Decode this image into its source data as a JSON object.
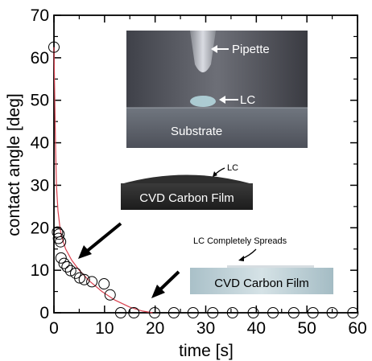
{
  "chart_data": {
    "type": "scatter",
    "xlabel": "time [s]",
    "ylabel": "contact angle [deg]",
    "xlim": [
      0,
      60
    ],
    "ylim": [
      0,
      70
    ],
    "xticks": [
      0,
      10,
      20,
      30,
      40,
      50,
      60
    ],
    "yticks": [
      0,
      10,
      20,
      30,
      40,
      50,
      60,
      70
    ],
    "marker": "open-circle",
    "marker_color": "#000000",
    "curve_color": "#d9414f",
    "points": [
      {
        "x": 0,
        "y": 62.5
      },
      {
        "x": 0.7,
        "y": 19
      },
      {
        "x": 0.9,
        "y": 17.5
      },
      {
        "x": 1.0,
        "y": 18.5
      },
      {
        "x": 1.3,
        "y": 16.7
      },
      {
        "x": 1.4,
        "y": 12.9
      },
      {
        "x": 2.0,
        "y": 11.6
      },
      {
        "x": 2.6,
        "y": 10.8
      },
      {
        "x": 3.3,
        "y": 9.9
      },
      {
        "x": 4.3,
        "y": 9.3
      },
      {
        "x": 5.1,
        "y": 8.2
      },
      {
        "x": 6.0,
        "y": 7.8
      },
      {
        "x": 7.5,
        "y": 7.3
      },
      {
        "x": 9.9,
        "y": 6.8
      },
      {
        "x": 11.1,
        "y": 4.2
      },
      {
        "x": 13.2,
        "y": 0
      },
      {
        "x": 15.8,
        "y": 0
      },
      {
        "x": 19.9,
        "y": 0
      },
      {
        "x": 23.7,
        "y": 0
      },
      {
        "x": 27.5,
        "y": 0
      },
      {
        "x": 31.4,
        "y": 0
      },
      {
        "x": 35.3,
        "y": 0
      },
      {
        "x": 39.4,
        "y": 0
      },
      {
        "x": 43.3,
        "y": 0
      },
      {
        "x": 47.4,
        "y": 0
      },
      {
        "x": 51.2,
        "y": 0
      },
      {
        "x": 55.0,
        "y": 0
      },
      {
        "x": 59.1,
        "y": 0
      }
    ],
    "fit_curve": [
      {
        "x": 0,
        "y": 62.5
      },
      {
        "x": 0.3,
        "y": 40
      },
      {
        "x": 0.5,
        "y": 30
      },
      {
        "x": 0.8,
        "y": 24
      },
      {
        "x": 1.2,
        "y": 20
      },
      {
        "x": 1.5,
        "y": 18
      },
      {
        "x": 2.3,
        "y": 15
      },
      {
        "x": 3.5,
        "y": 12.4
      },
      {
        "x": 5.0,
        "y": 10
      },
      {
        "x": 7.0,
        "y": 7.5
      },
      {
        "x": 9.5,
        "y": 5
      },
      {
        "x": 12.0,
        "y": 3
      },
      {
        "x": 15.0,
        "y": 1.3
      },
      {
        "x": 17.5,
        "y": 0.4
      },
      {
        "x": 19.5,
        "y": 0
      }
    ],
    "annotations": {
      "photo_labels": [
        "Pipette",
        "LC",
        "Substrate"
      ],
      "film1_label": "CVD Carbon Film",
      "film1_lc_label": "LC",
      "film2_label": "CVD Carbon Film",
      "film2_caption": "LC Completely Spreads"
    }
  }
}
